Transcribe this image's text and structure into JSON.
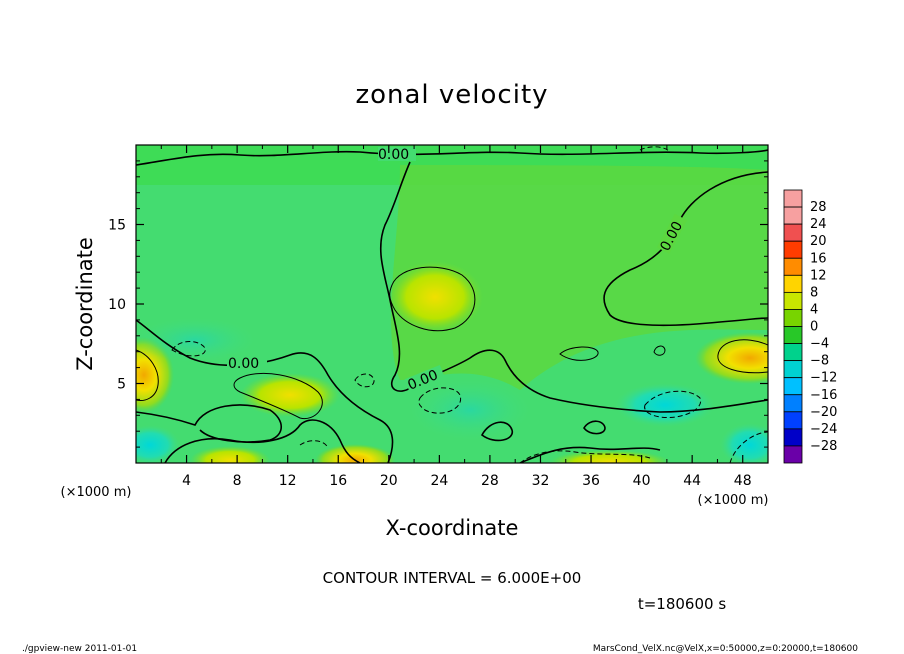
{
  "chart_data": {
    "type": "heatmap",
    "title": "zonal velocity",
    "xlabel": "X-coordinate",
    "ylabel": "Z-coordinate",
    "x_unit": "(×1000 m)",
    "z_unit": "(×1000 m)",
    "xlim": [
      0,
      50
    ],
    "ylim": [
      0,
      20
    ],
    "x_ticks": [
      4,
      8,
      12,
      16,
      20,
      24,
      28,
      32,
      36,
      40,
      44,
      48
    ],
    "y_ticks": [
      5,
      10,
      15
    ],
    "colorbar": {
      "levels": [
        28,
        24,
        20,
        16,
        12,
        8,
        4,
        0,
        -4,
        -8,
        -12,
        -16,
        -20,
        -24,
        -28
      ],
      "labels": [
        "28",
        "24",
        "20",
        "16",
        "12",
        "8",
        "4",
        "0",
        "−4",
        "−8",
        "−12",
        "−16",
        "−20",
        "−24",
        "−28"
      ],
      "colors": [
        "#f7a0a0",
        "#f05050",
        "#ff3c00",
        "#ff8c00",
        "#ffd400",
        "#c8e600",
        "#78d400",
        "#28c828",
        "#00d28c",
        "#00d2d2",
        "#00c0ff",
        "#0080ff",
        "#0040ff",
        "#0000c8",
        "#6a00a8"
      ]
    },
    "contour_label": "0.00",
    "contour_interval": "CONTOUR INTERVAL = 6.000E+00",
    "time": "t=180600 s",
    "colors": {
      "background_field": "#44dc70",
      "positive_blob": "#d4e600",
      "positive_peak": "#f2b000",
      "negative_blob": "#2fd8a8",
      "contour_line": "#000000"
    }
  },
  "footer": {
    "left": "./gpview-new  2011-01-01",
    "right": "MarsCond_VelX.nc@VelX,x=0:50000,z=0:20000,t=180600"
  }
}
